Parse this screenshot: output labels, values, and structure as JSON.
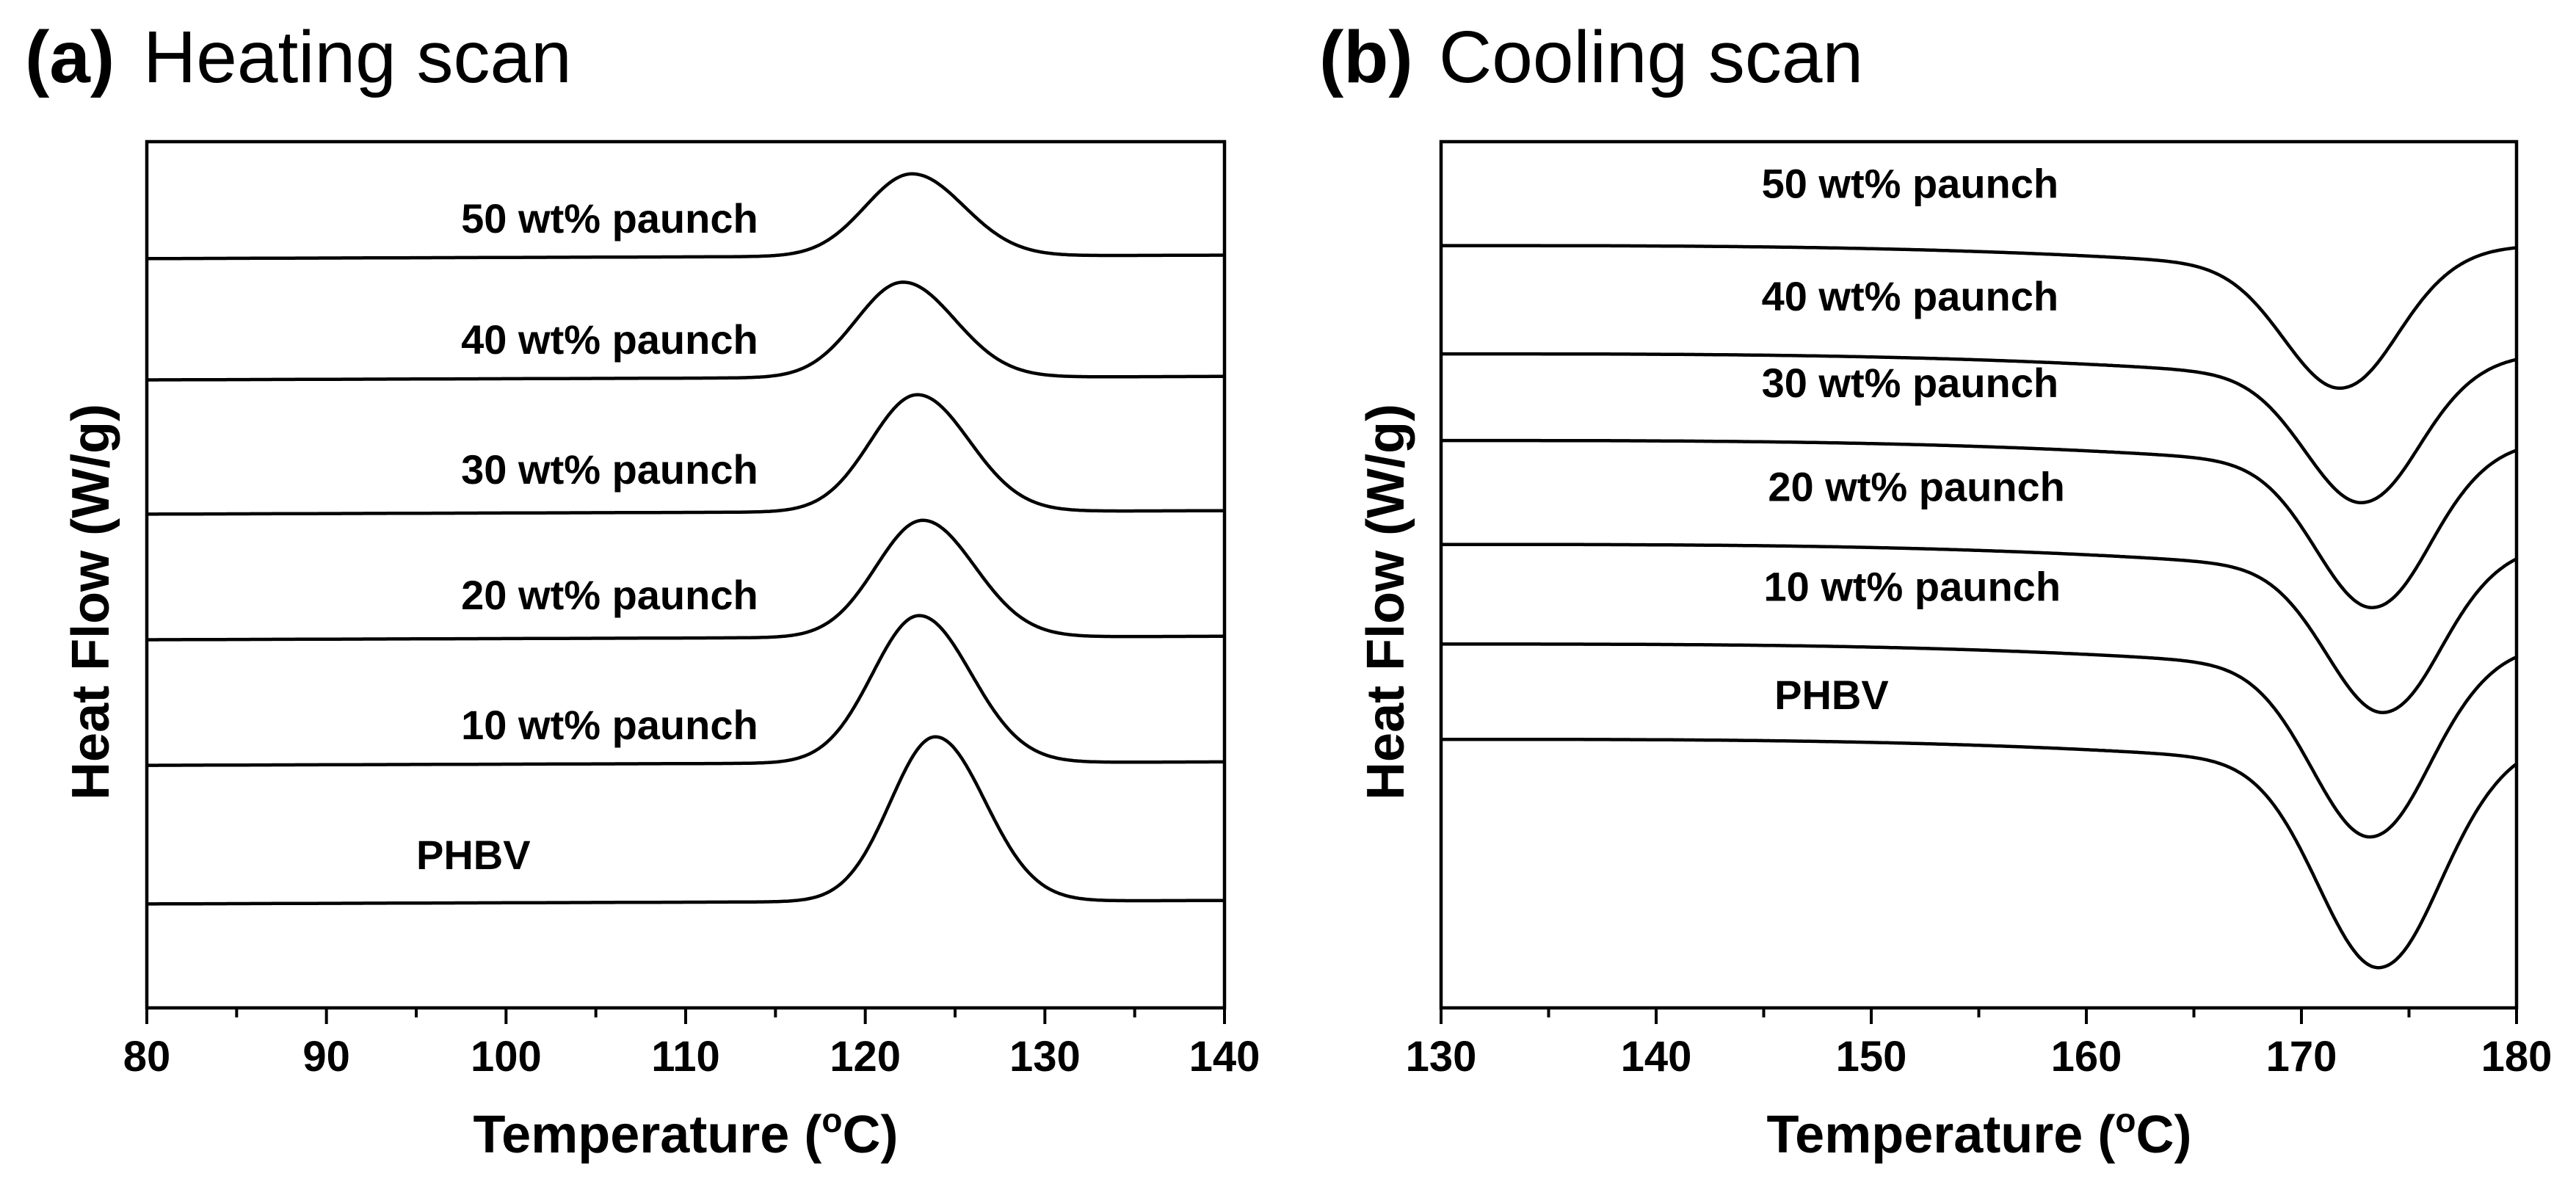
{
  "figure": {
    "panels": [
      {
        "letter": "(a)",
        "title": "Heating scan",
        "xlabel": "Temperature (",
        "xunit_sup": "o",
        "xunit_end": "C)",
        "ylabel": "Heat Flow (W/g)"
      },
      {
        "letter": "(b)",
        "title": "Cooling scan",
        "xlabel": "Temperature (",
        "xunit_sup": "o",
        "xunit_end": "C)",
        "ylabel": "Heat Flow (W/g)"
      }
    ]
  },
  "chart_data": [
    {
      "type": "line",
      "title": "Heating scan",
      "xlabel": "Temperature (°C)",
      "ylabel": "Heat Flow (W/g)",
      "xlim": [
        80,
        140
      ],
      "ylim": [
        0,
        10
      ],
      "xticks": [
        80,
        90,
        100,
        110,
        120,
        130,
        140
      ],
      "y_ticks_labeled": false,
      "grid": false,
      "series": [
        {
          "name": "50 wt% paunch",
          "baseline": 8.65,
          "drift": 0.04,
          "peak_x": 122.6,
          "peak_height": 0.95,
          "peak_width": 2.6,
          "label_x": 97.5,
          "label_y": 8.95
        },
        {
          "name": "40 wt% paunch",
          "baseline": 7.25,
          "drift": 0.04,
          "peak_x": 122.1,
          "peak_height": 1.1,
          "peak_width": 2.6,
          "label_x": 97.5,
          "label_y": 7.55
        },
        {
          "name": "30 wt% paunch",
          "baseline": 5.7,
          "drift": 0.04,
          "peak_x": 122.9,
          "peak_height": 1.35,
          "peak_width": 2.6,
          "label_x": 97.5,
          "label_y": 6.05
        },
        {
          "name": "20 wt% paunch",
          "baseline": 4.25,
          "drift": 0.04,
          "peak_x": 123.2,
          "peak_height": 1.35,
          "peak_width": 2.6,
          "label_x": 97.5,
          "label_y": 4.6
        },
        {
          "name": "10 wt% paunch",
          "baseline": 2.8,
          "drift": 0.04,
          "peak_x": 123.0,
          "peak_height": 1.7,
          "peak_width": 2.6,
          "label_x": 97.5,
          "label_y": 3.1
        },
        {
          "name": "PHBV",
          "baseline": 1.2,
          "drift": 0.04,
          "peak_x": 123.9,
          "peak_height": 1.9,
          "peak_width": 2.5,
          "label_x": 95.0,
          "label_y": 1.6
        }
      ]
    },
    {
      "type": "line",
      "title": "Cooling scan",
      "xlabel": "Temperature (°C)",
      "ylabel": "Heat Flow (W/g)",
      "xlim": [
        130,
        180
      ],
      "ylim": [
        0,
        10
      ],
      "xticks": [
        130,
        140,
        150,
        160,
        170,
        180
      ],
      "y_ticks_labeled": false,
      "grid": false,
      "series": [
        {
          "name": "50 wt% paunch",
          "baseline": 8.8,
          "drift": 0.55,
          "peak_x": 171.8,
          "peak_height": 1.35,
          "peak_width": 2.6,
          "label_x": 144.9,
          "label_y": 9.35
        },
        {
          "name": "40 wt% paunch",
          "baseline": 7.55,
          "drift": 0.55,
          "peak_x": 172.8,
          "peak_height": 1.4,
          "peak_width": 2.6,
          "label_x": 144.9,
          "label_y": 8.05
        },
        {
          "name": "30 wt% paunch",
          "baseline": 6.55,
          "drift": 0.55,
          "peak_x": 173.3,
          "peak_height": 1.6,
          "peak_width": 2.6,
          "label_x": 144.9,
          "label_y": 7.05
        },
        {
          "name": "20 wt% paunch",
          "baseline": 5.35,
          "drift": 0.55,
          "peak_x": 173.8,
          "peak_height": 1.6,
          "peak_width": 2.6,
          "label_x": 145.2,
          "label_y": 5.85
        },
        {
          "name": "10 wt% paunch",
          "baseline": 4.2,
          "drift": 0.55,
          "peak_x": 173.2,
          "peak_height": 1.9,
          "peak_width": 2.7,
          "label_x": 145.0,
          "label_y": 4.7
        },
        {
          "name": "PHBV",
          "baseline": 3.1,
          "drift": 0.55,
          "peak_x": 173.6,
          "peak_height": 2.3,
          "peak_width": 2.8,
          "label_x": 145.5,
          "label_y": 3.45
        }
      ]
    }
  ]
}
